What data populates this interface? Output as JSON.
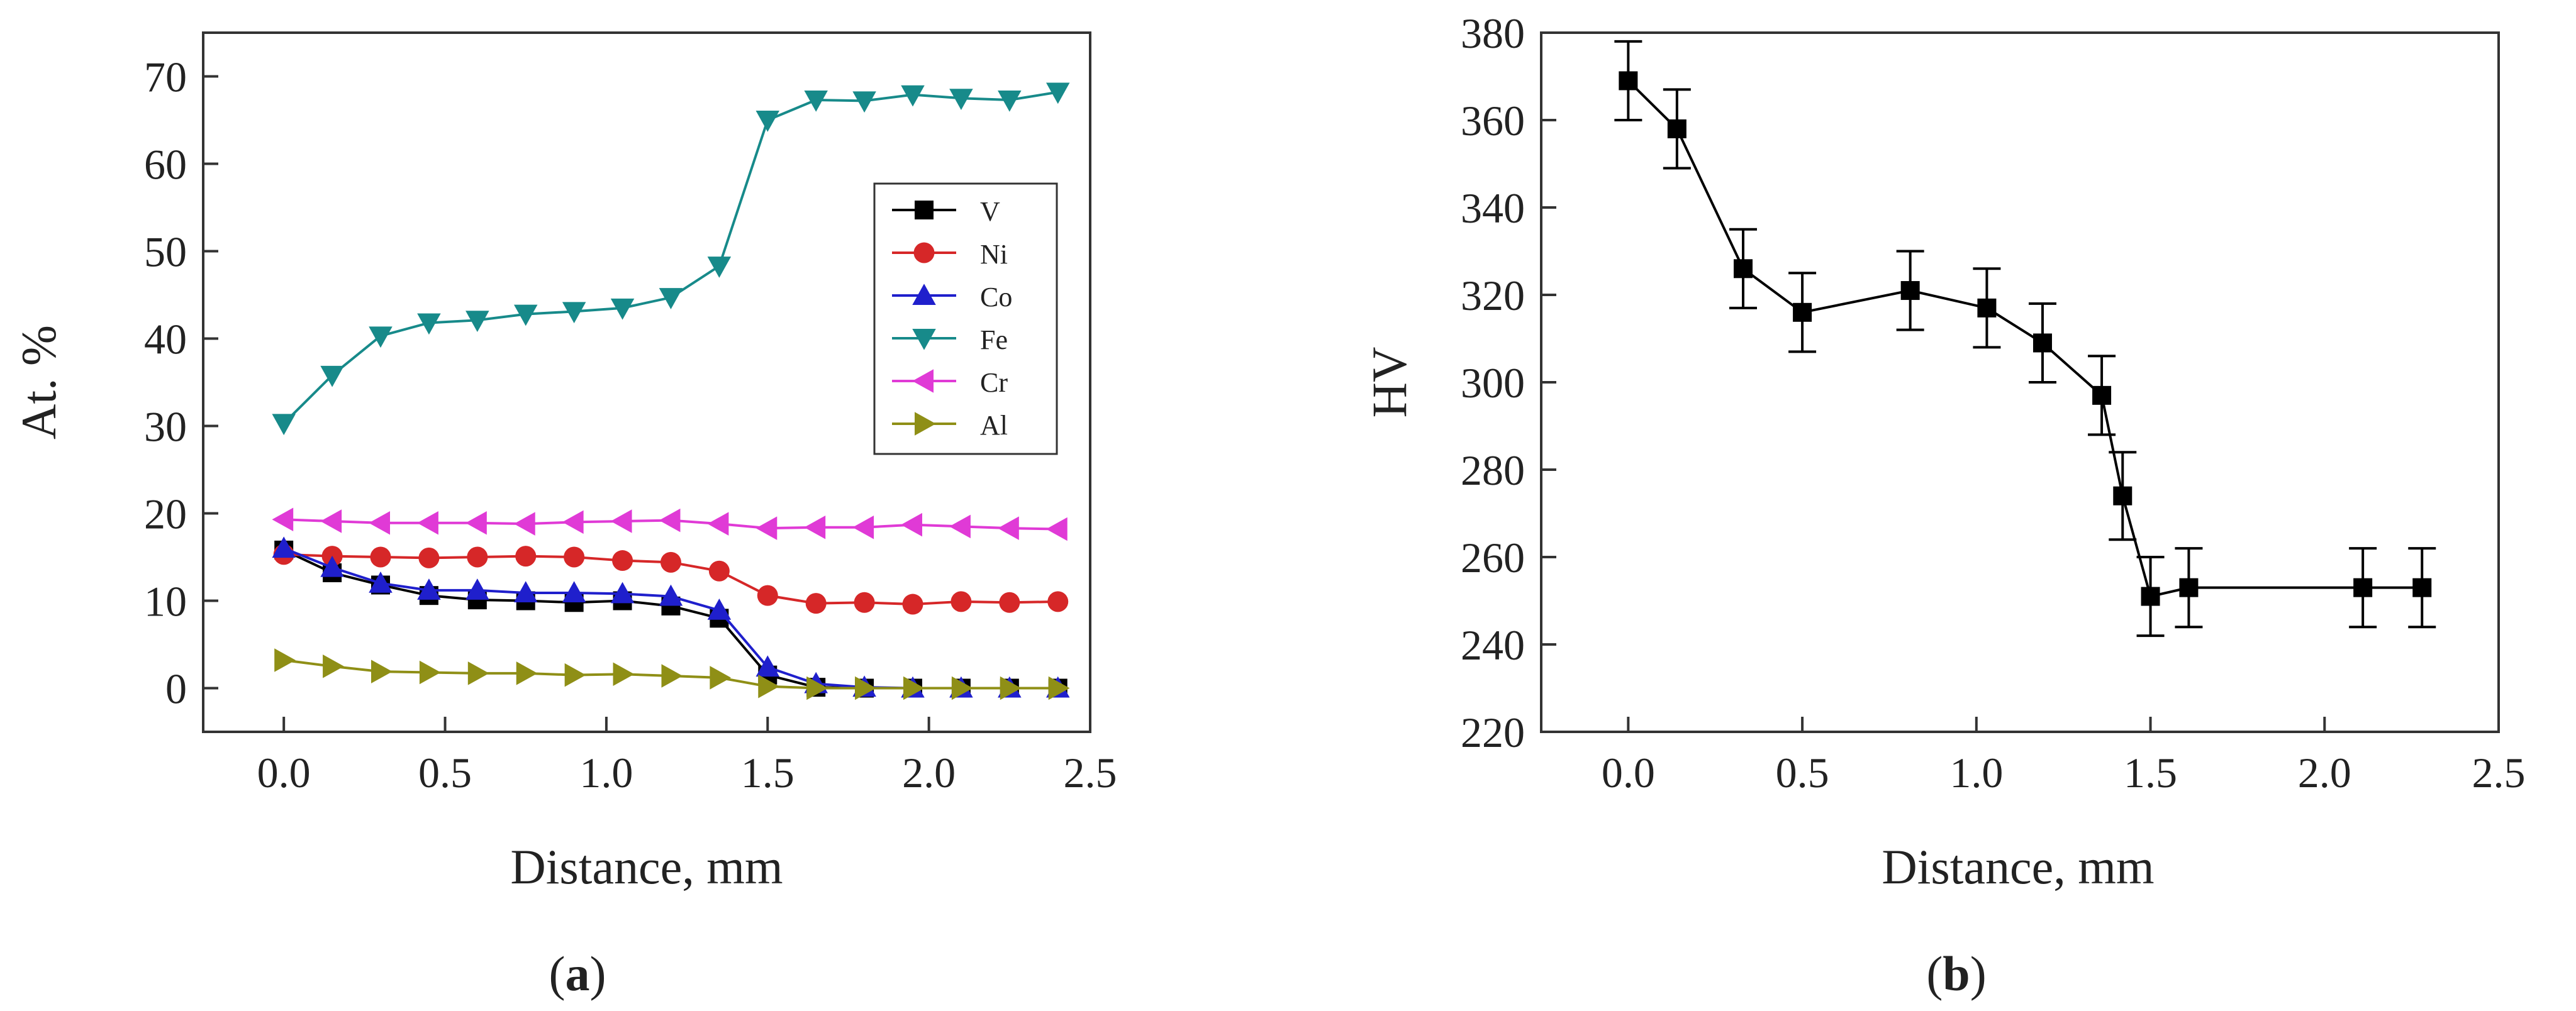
{
  "figure": {
    "panel_a_label": {
      "open": "(",
      "letter": "a",
      "close": ")"
    },
    "panel_b_label": {
      "open": "(",
      "letter": "b",
      "close": ")"
    }
  },
  "chart_data": [
    {
      "type": "line",
      "panel": "a",
      "title": "",
      "xlabel": "Distance, mm",
      "ylabel": "At. %",
      "xlim": [
        -0.25,
        2.5
      ],
      "ylim": [
        -5,
        75
      ],
      "xticks": [
        0.0,
        0.5,
        1.0,
        1.5,
        2.0,
        2.5
      ],
      "xtick_labels": [
        "0.0",
        "0.5",
        "1.0",
        "1.5",
        "2.0",
        "2.5"
      ],
      "yticks": [
        0,
        10,
        20,
        30,
        40,
        50,
        60,
        70
      ],
      "ytick_labels": [
        "0",
        "10",
        "20",
        "30",
        "40",
        "50",
        "60",
        "70"
      ],
      "legend_position": "right",
      "x": [
        0.0,
        0.15,
        0.3,
        0.45,
        0.6,
        0.75,
        0.9,
        1.05,
        1.2,
        1.35,
        1.5,
        1.65,
        1.8,
        1.95,
        2.1,
        2.25,
        2.4
      ],
      "series": [
        {
          "name": "V",
          "marker": "square",
          "color": "#000000",
          "values": [
            15.8,
            13.2,
            11.8,
            10.6,
            10.1,
            10.0,
            9.8,
            10.0,
            9.4,
            8.0,
            1.5,
            0.1,
            0.0,
            0.0,
            0.0,
            0.0,
            0.0
          ]
        },
        {
          "name": "Ni",
          "marker": "circle",
          "color": "#d62728",
          "values": [
            15.3,
            15.1,
            15.0,
            14.9,
            15.0,
            15.1,
            15.0,
            14.6,
            14.4,
            13.4,
            10.6,
            9.7,
            9.8,
            9.6,
            9.9,
            9.8,
            9.9
          ]
        },
        {
          "name": "Co",
          "marker": "triangle-up",
          "color": "#1f1fcc",
          "values": [
            16.0,
            13.8,
            12.0,
            11.2,
            11.2,
            10.9,
            10.9,
            10.8,
            10.5,
            8.9,
            2.4,
            0.5,
            0.1,
            0.0,
            0.0,
            0.0,
            0.0
          ]
        },
        {
          "name": "Fe",
          "marker": "triangle-down",
          "color": "#178a8a",
          "values": [
            30.3,
            35.8,
            40.3,
            41.8,
            42.1,
            42.8,
            43.1,
            43.5,
            44.7,
            48.3,
            65.0,
            67.3,
            67.2,
            67.9,
            67.5,
            67.3,
            68.2
          ]
        },
        {
          "name": "Cr",
          "marker": "triangle-left",
          "color": "#e03ad6",
          "values": [
            19.3,
            19.1,
            18.9,
            18.9,
            18.9,
            18.8,
            19.0,
            19.1,
            19.2,
            18.8,
            18.3,
            18.4,
            18.4,
            18.7,
            18.5,
            18.3,
            18.2
          ]
        },
        {
          "name": "Al",
          "marker": "triangle-right",
          "color": "#8f8f16",
          "values": [
            3.2,
            2.5,
            1.9,
            1.8,
            1.7,
            1.7,
            1.5,
            1.6,
            1.4,
            1.2,
            0.2,
            0.0,
            0.0,
            0.0,
            0.0,
            0.0,
            0.0
          ]
        }
      ]
    },
    {
      "type": "line",
      "panel": "b",
      "title": "",
      "xlabel": "Distance, mm",
      "ylabel": "HV",
      "xlim": [
        -0.25,
        2.5
      ],
      "ylim": [
        220,
        380
      ],
      "xticks": [
        0.0,
        0.5,
        1.0,
        1.5,
        2.0,
        2.5
      ],
      "xtick_labels": [
        "0.0",
        "0.5",
        "1.0",
        "1.5",
        "2.0",
        "2.5"
      ],
      "yticks": [
        220,
        240,
        260,
        280,
        300,
        320,
        340,
        360,
        380
      ],
      "ytick_labels": [
        "220",
        "240",
        "260",
        "280",
        "300",
        "320",
        "340",
        "360",
        "380"
      ],
      "series": [
        {
          "name": "HV",
          "marker": "square",
          "color": "#000000",
          "x": [
            0.0,
            0.14,
            0.33,
            0.5,
            0.81,
            1.03,
            1.19,
            1.36,
            1.42,
            1.5,
            1.61,
            2.11,
            2.28
          ],
          "values": [
            369,
            358,
            326,
            316,
            321,
            317,
            309,
            297,
            274,
            251,
            253,
            253,
            253
          ],
          "error": [
            9,
            9,
            9,
            9,
            9,
            9,
            9,
            9,
            10,
            9,
            9,
            9,
            9
          ]
        }
      ]
    }
  ]
}
